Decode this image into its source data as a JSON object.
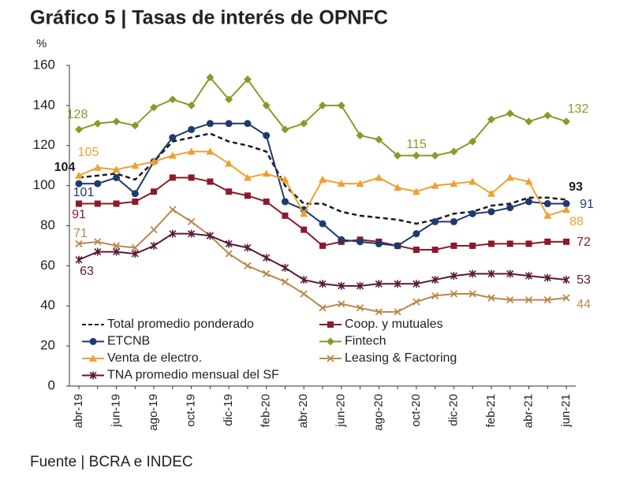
{
  "chart_data": {
    "type": "line",
    "title": "Gráfico 5 | Tasas de interés de OPNFC",
    "y_label": "%",
    "source": "Fuente | BCRA e INDEC",
    "categories": [
      "abr-19",
      null,
      "jun-19",
      null,
      "ago-19",
      null,
      "oct-19",
      null,
      "dic-19",
      null,
      "feb-20",
      null,
      "abr-20",
      null,
      "jun-20",
      null,
      "ago-20",
      null,
      "oct-20",
      null,
      "dic-20",
      null,
      "feb-21",
      null,
      "abr-21",
      null,
      "jun-21"
    ],
    "ylim": [
      0,
      160
    ],
    "yticks": [
      0,
      20,
      40,
      60,
      80,
      100,
      120,
      140,
      160
    ],
    "grid": false,
    "series": [
      {
        "name": "Total promedio ponderado",
        "color": "#1a1a1a",
        "marker": "none",
        "dashed": true,
        "values": [
          104,
          105,
          106,
          103,
          112,
          122,
          124,
          126,
          122,
          120,
          117,
          100,
          91,
          91,
          87,
          85,
          84,
          83,
          81,
          83,
          86,
          87,
          90,
          91,
          94,
          94,
          93
        ]
      },
      {
        "name": "Coop. y mutuales",
        "color": "#8b1a2b",
        "marker": "square",
        "values": [
          91,
          91,
          91,
          92,
          97,
          104,
          104,
          102,
          97,
          95,
          92,
          85,
          78,
          70,
          72,
          73,
          72,
          70,
          68,
          68,
          70,
          70,
          71,
          71,
          71,
          72,
          72
        ]
      },
      {
        "name": "ETCNB",
        "color": "#1f3a6e",
        "marker": "circle",
        "values": [
          101,
          101,
          104,
          96,
          112,
          124,
          128,
          131,
          131,
          131,
          125,
          92,
          88,
          81,
          73,
          72,
          71,
          70,
          76,
          82,
          82,
          86,
          87,
          89,
          92,
          91,
          91
        ]
      },
      {
        "name": "Fintech",
        "color": "#8a9a2a",
        "marker": "diamond",
        "values": [
          128,
          131,
          132,
          130,
          139,
          143,
          140,
          154,
          143,
          153,
          140,
          128,
          131,
          140,
          140,
          125,
          123,
          115,
          115,
          115,
          117,
          122,
          133,
          136,
          132,
          135,
          132
        ]
      },
      {
        "name": "Venta de electro.",
        "color": "#f0a030",
        "marker": "triangle",
        "values": [
          105,
          109,
          108,
          110,
          112,
          115,
          117,
          117,
          111,
          104,
          106,
          103,
          86,
          103,
          101,
          101,
          104,
          99,
          97,
          100,
          101,
          102,
          96,
          104,
          102,
          85,
          88
        ]
      },
      {
        "name": "Leasing & Factoring",
        "color": "#b8884a",
        "marker": "x",
        "values": [
          71,
          72,
          70,
          69,
          78,
          88,
          82,
          75,
          66,
          60,
          56,
          52,
          46,
          39,
          41,
          39,
          37,
          37,
          42,
          45,
          46,
          46,
          44,
          43,
          43,
          43,
          44
        ]
      },
      {
        "name": "TNA promedio mensual del SF",
        "color": "#5a1a35",
        "marker": "star",
        "values": [
          63,
          67,
          67,
          66,
          70,
          76,
          76,
          75,
          71,
          69,
          64,
          59,
          53,
          51,
          50,
          50,
          51,
          51,
          51,
          53,
          55,
          56,
          56,
          56,
          55,
          54,
          53
        ]
      }
    ]
  }
}
